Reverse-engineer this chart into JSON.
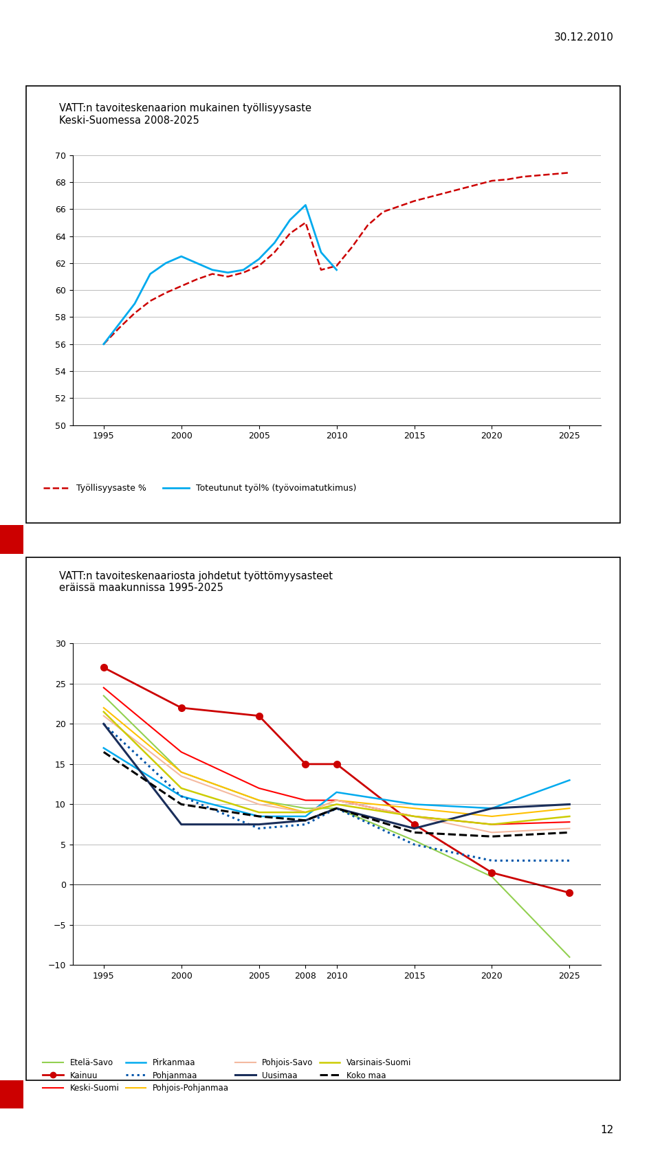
{
  "chart1": {
    "title": "VATT:n tavoiteskenaarion mukainen työllisyysaste\nKeski-Suomessa 2008-2025",
    "ylim": [
      50,
      70
    ],
    "yticks": [
      50,
      52,
      54,
      56,
      58,
      60,
      62,
      64,
      66,
      68,
      70
    ],
    "xticks": [
      1995,
      2000,
      2005,
      2010,
      2015,
      2020,
      2025
    ],
    "series": {
      "Työllisyysaste %": {
        "x": [
          1995,
          1996,
          1997,
          1998,
          1999,
          2000,
          2001,
          2002,
          2003,
          2004,
          2005,
          2006,
          2007,
          2008,
          2009,
          2010,
          2011,
          2012,
          2013,
          2014,
          2015,
          2016,
          2017,
          2018,
          2019,
          2020,
          2021,
          2022,
          2023,
          2024,
          2025
        ],
        "y": [
          56.0,
          57.2,
          58.3,
          59.2,
          59.8,
          60.3,
          60.8,
          61.2,
          61.0,
          61.3,
          61.8,
          62.8,
          64.2,
          65.0,
          61.5,
          61.8,
          63.2,
          64.8,
          65.8,
          66.2,
          66.6,
          66.9,
          67.2,
          67.5,
          67.8,
          68.1,
          68.2,
          68.4,
          68.5,
          68.6,
          68.7
        ],
        "color": "#cc0000",
        "style": "dashed",
        "linewidth": 1.8
      },
      "Toteutunut työl% (työvoimatutkimus)": {
        "x": [
          1995,
          1996,
          1997,
          1998,
          1999,
          2000,
          2001,
          2002,
          2003,
          2004,
          2005,
          2006,
          2007,
          2008,
          2009,
          2010
        ],
        "y": [
          56.0,
          57.5,
          59.0,
          61.2,
          62.0,
          62.5,
          62.0,
          61.5,
          61.3,
          61.5,
          62.3,
          63.5,
          65.2,
          66.3,
          62.8,
          61.5
        ],
        "color": "#00aaee",
        "style": "solid",
        "linewidth": 2.0
      }
    }
  },
  "chart2": {
    "title": "VATT:n tavoiteskenaariosta johdetut työttömyysasteet\neräissä maakunnissa 1995-2025",
    "ylim": [
      -10,
      30
    ],
    "yticks": [
      -10,
      -5,
      0,
      5,
      10,
      15,
      20,
      25,
      30
    ],
    "xticks": [
      1995,
      2000,
      2005,
      2008,
      2010,
      2015,
      2020,
      2025
    ],
    "series": {
      "Etelä-Savo": {
        "x": [
          1995,
          2000,
          2005,
          2008,
          2010,
          2015,
          2020,
          2025
        ],
        "y": [
          23.5,
          14.0,
          10.5,
          9.5,
          9.5,
          5.5,
          1.0,
          -9.0
        ],
        "color": "#92d050",
        "style": "solid",
        "linewidth": 1.5,
        "marker": null
      },
      "Kainuu": {
        "x": [
          1995,
          2000,
          2005,
          2008,
          2010,
          2015,
          2020,
          2025
        ],
        "y": [
          27.0,
          22.0,
          21.0,
          15.0,
          15.0,
          7.5,
          1.5,
          -1.0
        ],
        "color": "#cc0000",
        "style": "solid",
        "linewidth": 2.0,
        "marker": "o"
      },
      "Keski-Suomi": {
        "x": [
          1995,
          2000,
          2005,
          2008,
          2010,
          2015,
          2020,
          2025
        ],
        "y": [
          24.5,
          16.5,
          12.0,
          10.5,
          10.5,
          8.5,
          7.5,
          7.8
        ],
        "color": "#ff0000",
        "style": "solid",
        "linewidth": 1.5,
        "marker": null
      },
      "Pirkanmaa": {
        "x": [
          1995,
          2000,
          2005,
          2008,
          2010,
          2015,
          2020,
          2025
        ],
        "y": [
          17.0,
          11.0,
          8.5,
          8.5,
          11.5,
          10.0,
          9.5,
          13.0
        ],
        "color": "#00aaee",
        "style": "solid",
        "linewidth": 1.8,
        "marker": null
      },
      "Pohjanmaa": {
        "x": [
          1995,
          2000,
          2005,
          2008,
          2010,
          2015,
          2020,
          2025
        ],
        "y": [
          20.0,
          11.0,
          7.0,
          7.5,
          9.5,
          5.0,
          3.0,
          3.0
        ],
        "color": "#0055aa",
        "style": "dotted",
        "linewidth": 2.2,
        "marker": null
      },
      "Pohjois-Pohjanmaa": {
        "x": [
          1995,
          2000,
          2005,
          2008,
          2010,
          2015,
          2020,
          2025
        ],
        "y": [
          22.0,
          14.0,
          10.5,
          9.0,
          10.5,
          9.5,
          8.5,
          9.5
        ],
        "color": "#ffc000",
        "style": "solid",
        "linewidth": 1.5,
        "marker": null
      },
      "Pohjois-Savo": {
        "x": [
          1995,
          2000,
          2005,
          2008,
          2010,
          2015,
          2020,
          2025
        ],
        "y": [
          21.0,
          13.5,
          10.0,
          9.0,
          10.5,
          8.5,
          6.5,
          7.0
        ],
        "color": "#f4b9a0",
        "style": "solid",
        "linewidth": 1.5,
        "marker": null
      },
      "Uusimaa": {
        "x": [
          1995,
          2000,
          2005,
          2008,
          2010,
          2015,
          2020,
          2025
        ],
        "y": [
          20.0,
          7.5,
          7.5,
          8.0,
          9.5,
          7.0,
          9.5,
          10.0
        ],
        "color": "#1a2e5a",
        "style": "solid",
        "linewidth": 2.2,
        "marker": null
      },
      "Varsinais-Suomi": {
        "x": [
          1995,
          2000,
          2005,
          2008,
          2010,
          2015,
          2020,
          2025
        ],
        "y": [
          21.5,
          12.0,
          9.0,
          9.0,
          10.0,
          8.5,
          7.5,
          8.5
        ],
        "color": "#cccc00",
        "style": "solid",
        "linewidth": 1.8,
        "marker": null
      },
      "Koko maa": {
        "x": [
          1995,
          2000,
          2005,
          2008,
          2010,
          2015,
          2020,
          2025
        ],
        "y": [
          16.5,
          10.0,
          8.5,
          8.0,
          9.5,
          6.5,
          6.0,
          6.5
        ],
        "color": "#000000",
        "style": "dashed",
        "linewidth": 2.2,
        "marker": null
      }
    }
  },
  "page_date": "30.12.2010",
  "page_number": "12",
  "background_color": "#ffffff"
}
